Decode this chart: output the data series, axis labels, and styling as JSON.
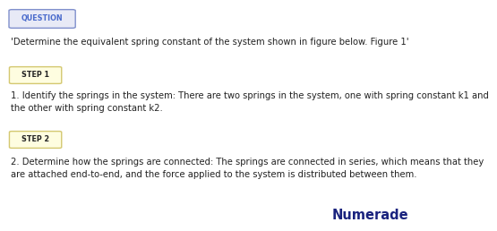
{
  "background_color": "#ffffff",
  "question_label": "QUESTION",
  "question_label_color": "#4a6bcc",
  "question_label_bg": "#e8eaf6",
  "question_label_border": "#8090cc",
  "question_text": "'Determine the equivalent spring constant of the system shown in figure below. Figure 1'",
  "step1_label": "STEP 1",
  "step1_bg": "#fefde0",
  "step1_border": "#d4c870",
  "step1_text_line1": "1. Identify the springs in the system: There are two springs in the system, one with spring constant k1 and",
  "step1_text_line2": "the other with spring constant k2.",
  "step2_label": "STEP 2",
  "step2_bg": "#fefde0",
  "step2_border": "#d4c870",
  "step2_text_line1": "2. Determine how the springs are connected: The springs are connected in series, which means that they",
  "step2_text_line2": "are attached end-to-end, and the force applied to the system is distributed between them.",
  "numerade_text": "Numerade",
  "numerade_color": "#1a237e",
  "text_color": "#222222",
  "font_size_badge": 5.8,
  "font_size_text": 7.2,
  "font_size_numerade": 10.5
}
